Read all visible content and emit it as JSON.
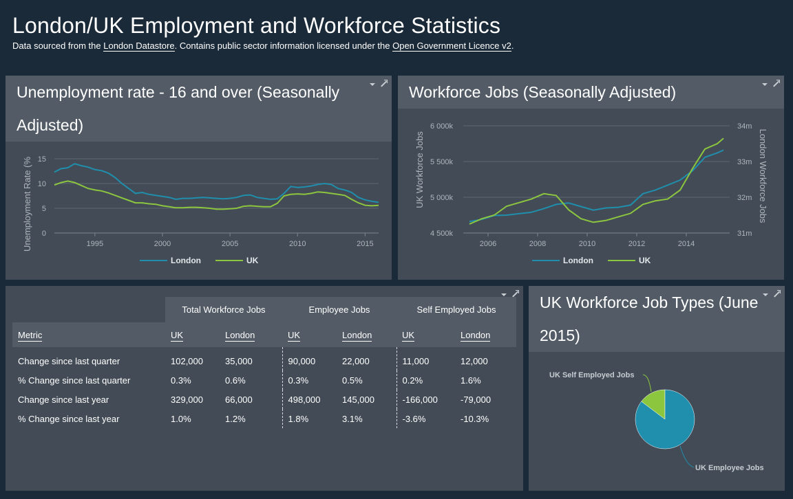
{
  "header": {
    "title": "London/UK Employment and Workforce Statistics",
    "sub_prefix": "Data sourced from the ",
    "link1": "London Datastore",
    "sub_mid": ". Contains public sector information licensed under the ",
    "link2": "Open Government Licence v2",
    "sub_suffix": "."
  },
  "panels": {
    "unemployment_title": "Unemployment rate - 16 and over (Seasonally Adjusted)",
    "workforce_title": "Workforce Jobs (Seasonally Adjusted)",
    "jobtypes_title": "UK Workforce Job Types (June 2015)"
  },
  "colors": {
    "london": "#1f8fad",
    "uk": "#8cc63f",
    "bg": "#1b2a38",
    "panel": "#434c56",
    "panel_header": "#535c66"
  },
  "chart_data": [
    {
      "type": "line",
      "title": "Unemployment rate - 16 and over (Seasonally Adjusted)",
      "ylabel": "Unemployment Rate (%",
      "xlabel": "",
      "ylim": [
        0,
        15
      ],
      "xlim": [
        1992,
        2016
      ],
      "y_ticks": [
        "0",
        "5",
        "10",
        "15"
      ],
      "x_ticks": [
        "1995",
        "2000",
        "2005",
        "2010",
        "2015"
      ],
      "grid": true,
      "legend": "bottom",
      "series": [
        {
          "name": "London",
          "color": "#1f8fad",
          "points": [
            [
              1992,
              12.3
            ],
            [
              1992.5,
              13.0
            ],
            [
              1993,
              13.2
            ],
            [
              1993.5,
              14.0
            ],
            [
              1994,
              13.6
            ],
            [
              1994.5,
              13.3
            ],
            [
              1995,
              12.8
            ],
            [
              1995.5,
              12.6
            ],
            [
              1996,
              12.1
            ],
            [
              1996.5,
              11.2
            ],
            [
              1997,
              10.0
            ],
            [
              1997.5,
              9.0
            ],
            [
              1998,
              8.0
            ],
            [
              1998.5,
              8.2
            ],
            [
              1999,
              7.8
            ],
            [
              1999.5,
              7.6
            ],
            [
              2000,
              7.4
            ],
            [
              2000.5,
              7.2
            ],
            [
              2001,
              6.8
            ],
            [
              2001.5,
              7.0
            ],
            [
              2002,
              7.0
            ],
            [
              2002.5,
              7.1
            ],
            [
              2003,
              7.2
            ],
            [
              2003.5,
              7.1
            ],
            [
              2004,
              7.0
            ],
            [
              2004.5,
              6.9
            ],
            [
              2005,
              7.0
            ],
            [
              2005.5,
              7.2
            ],
            [
              2006,
              7.6
            ],
            [
              2006.5,
              7.7
            ],
            [
              2007,
              7.2
            ],
            [
              2007.5,
              7.0
            ],
            [
              2008,
              6.8
            ],
            [
              2008.5,
              6.9
            ],
            [
              2009,
              8.0
            ],
            [
              2009.5,
              9.4
            ],
            [
              2010,
              9.2
            ],
            [
              2010.5,
              9.3
            ],
            [
              2011,
              9.5
            ],
            [
              2011.5,
              9.8
            ],
            [
              2012,
              10.0
            ],
            [
              2012.5,
              9.8
            ],
            [
              2013,
              9.0
            ],
            [
              2013.5,
              8.7
            ],
            [
              2014,
              8.2
            ],
            [
              2014.5,
              7.2
            ],
            [
              2015,
              6.7
            ],
            [
              2015.5,
              6.4
            ],
            [
              2016,
              6.2
            ]
          ]
        },
        {
          "name": "UK",
          "color": "#8cc63f",
          "points": [
            [
              1992,
              9.7
            ],
            [
              1992.5,
              10.2
            ],
            [
              1993,
              10.5
            ],
            [
              1993.5,
              10.2
            ],
            [
              1994,
              9.6
            ],
            [
              1994.5,
              9.0
            ],
            [
              1995,
              8.7
            ],
            [
              1995.5,
              8.5
            ],
            [
              1996,
              8.1
            ],
            [
              1996.5,
              7.6
            ],
            [
              1997,
              7.1
            ],
            [
              1997.5,
              6.6
            ],
            [
              1998,
              6.1
            ],
            [
              1998.5,
              6.1
            ],
            [
              1999,
              5.9
            ],
            [
              1999.5,
              5.8
            ],
            [
              2000,
              5.5
            ],
            [
              2000.5,
              5.3
            ],
            [
              2001,
              5.1
            ],
            [
              2001.5,
              5.1
            ],
            [
              2002,
              5.2
            ],
            [
              2002.5,
              5.2
            ],
            [
              2003,
              5.1
            ],
            [
              2003.5,
              5.0
            ],
            [
              2004,
              4.8
            ],
            [
              2004.5,
              4.8
            ],
            [
              2005,
              4.9
            ],
            [
              2005.5,
              5.0
            ],
            [
              2006,
              5.4
            ],
            [
              2006.5,
              5.5
            ],
            [
              2007,
              5.4
            ],
            [
              2007.5,
              5.3
            ],
            [
              2008,
              5.3
            ],
            [
              2008.5,
              6.0
            ],
            [
              2009,
              7.5
            ],
            [
              2009.5,
              7.8
            ],
            [
              2010,
              7.9
            ],
            [
              2010.5,
              7.8
            ],
            [
              2011,
              8.0
            ],
            [
              2011.5,
              8.3
            ],
            [
              2012,
              8.2
            ],
            [
              2012.5,
              8.0
            ],
            [
              2013,
              7.8
            ],
            [
              2013.5,
              7.6
            ],
            [
              2014,
              6.8
            ],
            [
              2014.5,
              6.1
            ],
            [
              2015,
              5.6
            ],
            [
              2015.5,
              5.5
            ],
            [
              2016,
              5.6
            ]
          ]
        }
      ]
    },
    {
      "type": "line",
      "title": "Workforce Jobs (Seasonally Adjusted)",
      "ylabel": "UK Workforce Jobs",
      "y2label": "London Workforce Jobs",
      "xlim": [
        2005,
        2015.75
      ],
      "ylim_left": [
        4500,
        6000
      ],
      "ylim_right": [
        31,
        34
      ],
      "y_ticks_left": [
        "4 500k",
        "5 000k",
        "5 500k",
        "6 000k"
      ],
      "y_ticks_right": [
        "31m",
        "32m",
        "33m",
        "34m"
      ],
      "x_ticks": [
        "2006",
        "2008",
        "2010",
        "2012",
        "2014"
      ],
      "grid": true,
      "legend": "bottom",
      "series": [
        {
          "name": "London",
          "axis": "left",
          "color": "#1f8fad",
          "points": [
            [
              2005.25,
              4660
            ],
            [
              2005.75,
              4690
            ],
            [
              2006.25,
              4745
            ],
            [
              2006.75,
              4750
            ],
            [
              2007.25,
              4770
            ],
            [
              2007.75,
              4790
            ],
            [
              2008.25,
              4840
            ],
            [
              2008.75,
              4900
            ],
            [
              2009.25,
              4920
            ],
            [
              2009.75,
              4870
            ],
            [
              2010.25,
              4820
            ],
            [
              2010.75,
              4850
            ],
            [
              2011.25,
              4860
            ],
            [
              2011.75,
              4890
            ],
            [
              2012.25,
              5050
            ],
            [
              2012.75,
              5100
            ],
            [
              2013.25,
              5170
            ],
            [
              2013.75,
              5240
            ],
            [
              2014.25,
              5370
            ],
            [
              2014.75,
              5560
            ],
            [
              2015.25,
              5620
            ],
            [
              2015.5,
              5660
            ]
          ]
        },
        {
          "name": "UK",
          "axis": "right",
          "color": "#8cc63f",
          "points": [
            [
              2005.25,
              31.25
            ],
            [
              2005.75,
              31.4
            ],
            [
              2006.25,
              31.5
            ],
            [
              2006.75,
              31.75
            ],
            [
              2007.25,
              31.85
            ],
            [
              2007.75,
              31.95
            ],
            [
              2008.25,
              32.1
            ],
            [
              2008.75,
              32.05
            ],
            [
              2009.25,
              31.65
            ],
            [
              2009.75,
              31.4
            ],
            [
              2010.25,
              31.3
            ],
            [
              2010.75,
              31.35
            ],
            [
              2011.25,
              31.45
            ],
            [
              2011.75,
              31.55
            ],
            [
              2012.25,
              31.8
            ],
            [
              2012.75,
              31.9
            ],
            [
              2013.25,
              31.95
            ],
            [
              2013.75,
              32.2
            ],
            [
              2014.25,
              32.8
            ],
            [
              2014.75,
              33.35
            ],
            [
              2015.25,
              33.5
            ],
            [
              2015.5,
              33.65
            ]
          ]
        }
      ]
    },
    {
      "type": "pie",
      "title": "UK Workforce Job Types (June 2015)",
      "slices": [
        {
          "label": "UK Employee Jobs",
          "value": 85.3,
          "color": "#1f8fad"
        },
        {
          "label": "UK Self Employed Jobs",
          "value": 14.7,
          "color": "#8cc63f"
        }
      ]
    }
  ],
  "table": {
    "groups": [
      "Total Workforce Jobs",
      "Employee Jobs",
      "Self Employed Jobs"
    ],
    "columns": [
      "Metric",
      "UK",
      "London",
      "UK",
      "London",
      "UK",
      "London"
    ],
    "rows": [
      [
        "Change since last quarter",
        "102,000",
        "35,000",
        "90,000",
        "22,000",
        "11,000",
        "12,000"
      ],
      [
        "% Change since last quarter",
        "0.3%",
        "0.6%",
        "0.3%",
        "0.5%",
        "0.2%",
        "1.6%"
      ],
      [
        "Change since last year",
        "329,000",
        "66,000",
        "498,000",
        "145,000",
        "-166,000",
        "-79,000"
      ],
      [
        "% Change since last year",
        "1.0%",
        "1.2%",
        "1.8%",
        "3.1%",
        "-3.6%",
        "-10.3%"
      ]
    ]
  }
}
